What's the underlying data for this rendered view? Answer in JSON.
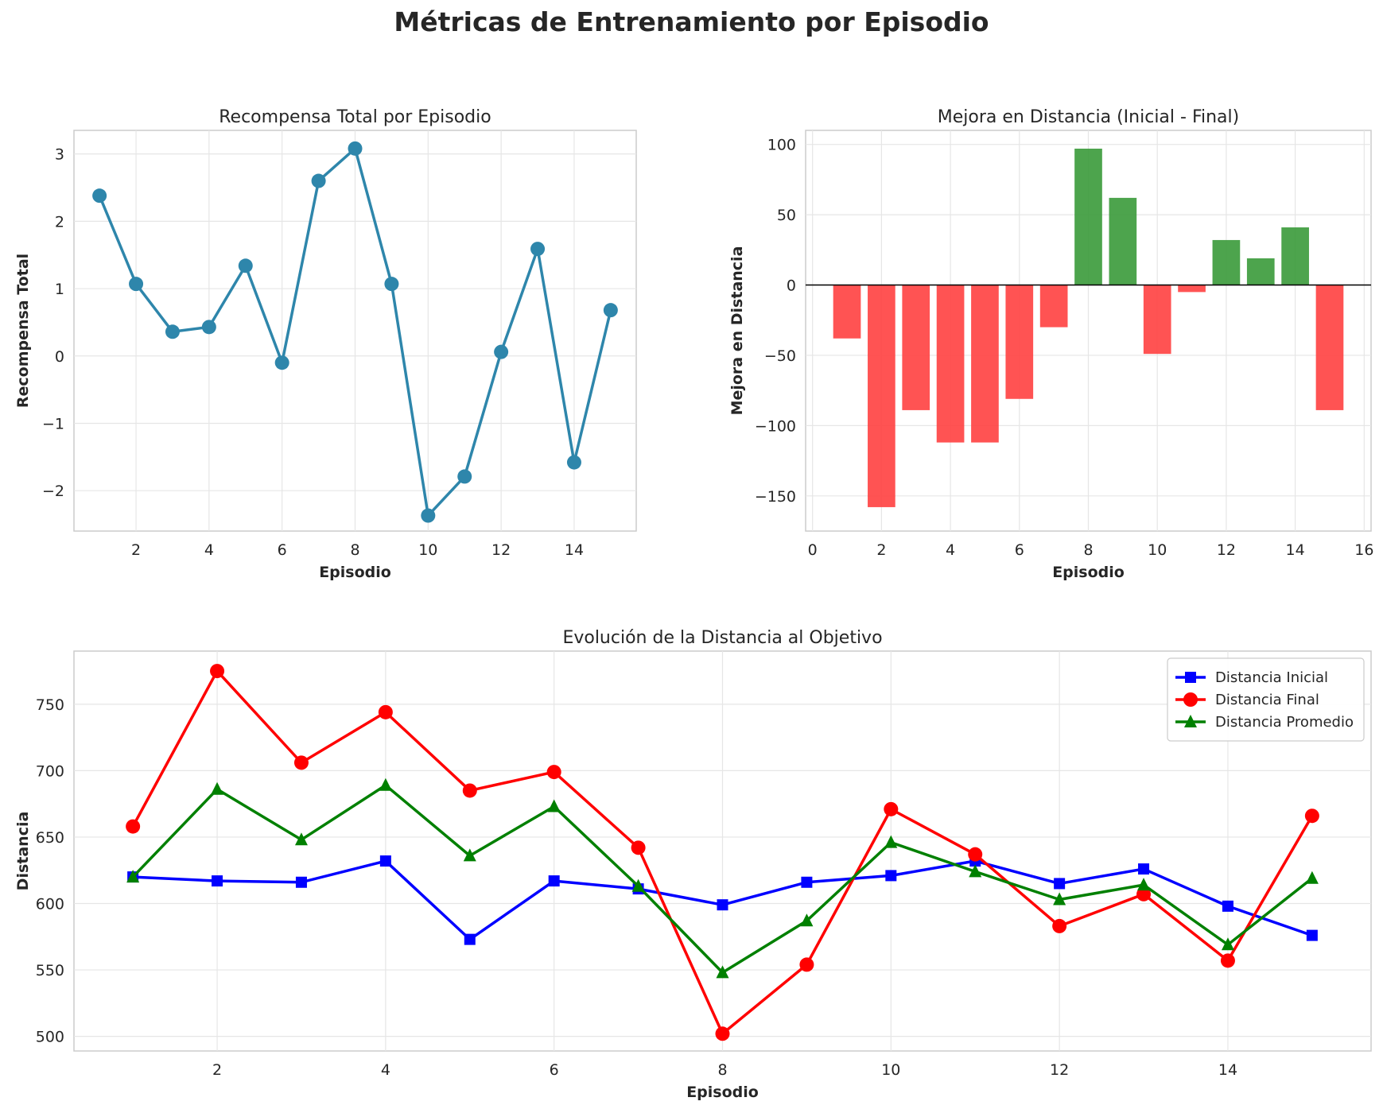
{
  "suptitle": "Métricas de Entrenamiento por Episodio",
  "chart_data": [
    {
      "type": "line",
      "title": "Recompensa Total por Episodio",
      "xlabel": "Episodio",
      "ylabel": "Recompensa Total",
      "x": [
        1,
        2,
        3,
        4,
        5,
        6,
        7,
        8,
        9,
        10,
        11,
        12,
        13,
        14,
        15
      ],
      "series": [
        {
          "values": [
            2.38,
            1.07,
            0.36,
            0.43,
            1.34,
            -0.1,
            2.6,
            3.08,
            1.07,
            -2.37,
            -1.79,
            0.06,
            1.59,
            -1.58,
            0.68
          ],
          "color": "#2e86ab",
          "marker": "circle"
        }
      ],
      "xlim": [
        0.3,
        15.7
      ],
      "ylim": [
        -2.6,
        3.35
      ],
      "xticks": [
        2,
        4,
        6,
        8,
        10,
        12,
        14
      ],
      "yticks": [
        -2,
        -1,
        0,
        1,
        2,
        3
      ],
      "grid": true
    },
    {
      "type": "bar",
      "title": "Mejora en Distancia (Inicial - Final)",
      "xlabel": "Episodio",
      "ylabel": "Mejora en Distancia",
      "x": [
        1,
        2,
        3,
        4,
        5,
        6,
        7,
        8,
        9,
        10,
        11,
        12,
        13,
        14,
        15
      ],
      "values": [
        -38,
        -158,
        -89,
        -112,
        -112,
        -81,
        -30,
        97,
        62,
        -49,
        -5,
        32,
        19,
        41,
        -89
      ],
      "positive_color": "#3a9a3a",
      "negative_color": "#ff4040",
      "xlim": [
        -0.2,
        16.2
      ],
      "ylim": [
        -175,
        110
      ],
      "xticks": [
        0,
        2,
        4,
        6,
        8,
        10,
        12,
        14,
        16
      ],
      "yticks": [
        -150,
        -100,
        -50,
        0,
        50,
        100
      ],
      "grid": true
    },
    {
      "type": "line",
      "title": "Evolución de la Distancia al Objetivo",
      "xlabel": "Episodio",
      "ylabel": "Distancia",
      "x": [
        1,
        2,
        3,
        4,
        5,
        6,
        7,
        8,
        9,
        10,
        11,
        12,
        13,
        14,
        15
      ],
      "series": [
        {
          "name": "Distancia Inicial",
          "values": [
            620,
            617,
            616,
            632,
            573,
            617,
            611,
            599,
            616,
            621,
            632,
            615,
            626,
            598,
            576
          ],
          "color": "#0000ff",
          "marker": "square"
        },
        {
          "name": "Distancia Final",
          "values": [
            658,
            775,
            706,
            744,
            685,
            699,
            642,
            502,
            554,
            671,
            637,
            583,
            607,
            557,
            666
          ],
          "color": "#ff0000",
          "marker": "circle"
        },
        {
          "name": "Distancia Promedio",
          "values": [
            620,
            686,
            648,
            689,
            636,
            673,
            613,
            548,
            587,
            646,
            624,
            603,
            614,
            569,
            619
          ],
          "color": "#008000",
          "marker": "triangle"
        }
      ],
      "legend": "top-right",
      "xlim": [
        0.3,
        15.7
      ],
      "ylim": [
        489,
        790
      ],
      "xticks": [
        2,
        4,
        6,
        8,
        10,
        12,
        14
      ],
      "yticks": [
        500,
        550,
        600,
        650,
        700,
        750
      ],
      "grid": true
    }
  ]
}
